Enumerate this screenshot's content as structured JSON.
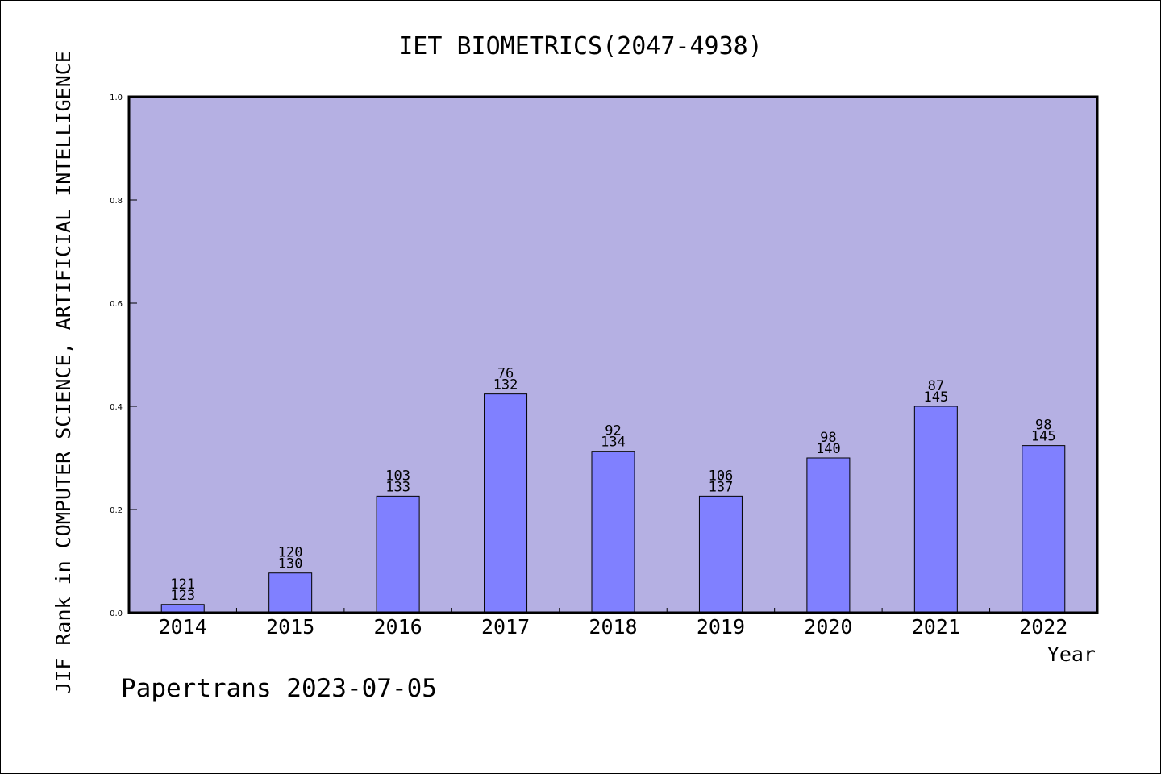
{
  "chart_data": {
    "type": "bar",
    "title": "IET BIOMETRICS(2047-4938)",
    "xlabel": "Year",
    "ylabel": "JIF Rank in COMPUTER SCIENCE, ARTIFICIAL INTELLIGENCE",
    "categories": [
      "2014",
      "2015",
      "2016",
      "2017",
      "2018",
      "2019",
      "2020",
      "2021",
      "2022"
    ],
    "values": [
      0.016,
      0.077,
      0.226,
      0.424,
      0.313,
      0.226,
      0.3,
      0.4,
      0.324
    ],
    "rank": [
      "121",
      "120",
      "103",
      "76",
      "92",
      "106",
      "98",
      "87",
      "98"
    ],
    "total": [
      "123",
      "130",
      "133",
      "132",
      "134",
      "137",
      "140",
      "145",
      "145"
    ],
    "ylim": [
      0,
      1.0
    ],
    "yticks": [
      "0.0",
      "0.2",
      "0.4",
      "0.6",
      "0.8",
      "1.0"
    ],
    "grid": false,
    "colors": {
      "plot_background": "#b5b0e3",
      "bar_fill": "#8080ff",
      "axis": "#000000"
    }
  },
  "footer": "Papertrans 2023-07-05"
}
